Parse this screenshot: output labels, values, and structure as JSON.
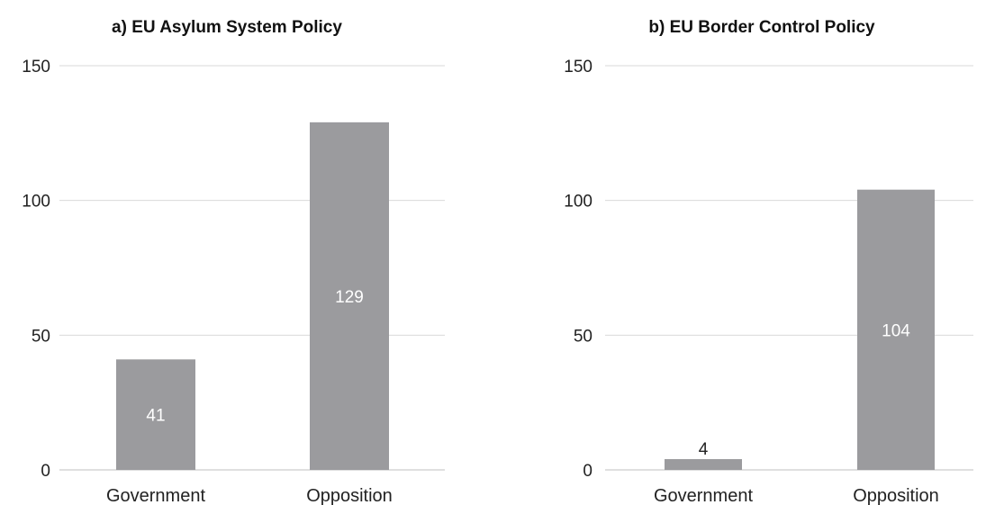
{
  "chart_data": [
    {
      "type": "bar",
      "title": "a) EU Asylum System Policy",
      "categories": [
        "Government",
        "Opposition"
      ],
      "values": [
        41,
        129
      ],
      "data_labels": [
        "41",
        "129"
      ],
      "ylim": [
        0,
        150
      ],
      "yticks": [
        "0",
        "50",
        "100",
        "150"
      ],
      "grid": true,
      "bar_color": "#9b9b9e"
    },
    {
      "type": "bar",
      "title": "b) EU Border Control Policy",
      "categories": [
        "Government",
        "Opposition"
      ],
      "values": [
        4,
        104
      ],
      "data_labels": [
        "4",
        "104"
      ],
      "ylim": [
        0,
        150
      ],
      "yticks": [
        "0",
        "50",
        "100",
        "150"
      ],
      "grid": true,
      "bar_color": "#9b9b9e"
    }
  ]
}
